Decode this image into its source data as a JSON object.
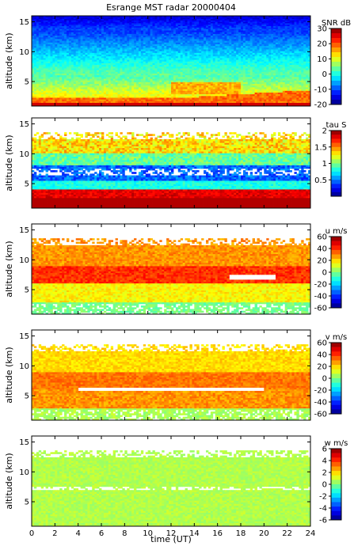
{
  "title": "Esrange MST radar 20000404",
  "xlabel": "time (UT)",
  "chart_data": [
    {
      "type": "heatmap",
      "title": "Esrange MST radar 20000404",
      "ylabel": "altitude (km)",
      "xlabel": "",
      "xlim": [
        0,
        24
      ],
      "ylim": [
        0.9,
        16
      ],
      "x_ticks": [
        "0",
        "2",
        "4",
        "6",
        "8",
        "10",
        "12",
        "14",
        "16",
        "18",
        "20",
        "22",
        "24"
      ],
      "y_ticks": [
        "5",
        "10",
        "15"
      ],
      "colorbar": {
        "label": "SNR dB",
        "range": [
          -20,
          30
        ],
        "ticks": [
          "30",
          "20",
          "10",
          "0",
          "-10",
          "-20"
        ]
      },
      "summary_profile": [
        {
          "alt": 1.5,
          "value": 28
        },
        {
          "alt": 3,
          "value": 18
        },
        {
          "alt": 5,
          "value": 10
        },
        {
          "alt": 7,
          "value": 4
        },
        {
          "alt": 9,
          "value": 2
        },
        {
          "alt": 11,
          "value": -2
        },
        {
          "alt": 13,
          "value": -8
        },
        {
          "alt": 15,
          "value": -14
        }
      ]
    },
    {
      "type": "heatmap",
      "ylabel": "altitude (km)",
      "xlim": [
        0,
        24
      ],
      "ylim": [
        0.9,
        16
      ],
      "x_ticks": [
        "0",
        "2",
        "4",
        "6",
        "8",
        "10",
        "12",
        "14",
        "16",
        "18",
        "20",
        "22",
        "24"
      ],
      "y_ticks": [
        "5",
        "10",
        "15"
      ],
      "colorbar": {
        "label": "tau S",
        "range": [
          0,
          2
        ],
        "ticks": [
          "2",
          "1.5",
          "1",
          "0.5"
        ]
      },
      "summary_profile": [
        {
          "alt": 2,
          "value": 1.95
        },
        {
          "alt": 3.5,
          "value": 1.8
        },
        {
          "alt": 5,
          "value": 0.6
        },
        {
          "alt": 7,
          "value": 0.4
        },
        {
          "alt": 9,
          "value": 0.9
        },
        {
          "alt": 11,
          "value": 1.4
        }
      ]
    },
    {
      "type": "heatmap",
      "ylabel": "altitude (km)",
      "xlim": [
        0,
        24
      ],
      "ylim": [
        0.9,
        16
      ],
      "x_ticks": [
        "0",
        "2",
        "4",
        "6",
        "8",
        "10",
        "12",
        "14",
        "16",
        "18",
        "20",
        "22",
        "24"
      ],
      "y_ticks": [
        "5",
        "10",
        "15"
      ],
      "colorbar": {
        "label": "u m/s",
        "range": [
          -60,
          60
        ],
        "ticks": [
          "60",
          "40",
          "20",
          "0",
          "-20",
          "-40",
          "-60"
        ]
      },
      "summary_profile": [
        {
          "alt": 2,
          "value": -5
        },
        {
          "alt": 4,
          "value": 5
        },
        {
          "alt": 6,
          "value": 20
        },
        {
          "alt": 8,
          "value": 40
        },
        {
          "alt": 10,
          "value": 35
        },
        {
          "alt": 12,
          "value": 22
        }
      ]
    },
    {
      "type": "heatmap",
      "ylabel": "altitude (km)",
      "xlim": [
        0,
        24
      ],
      "ylim": [
        0.9,
        16
      ],
      "x_ticks": [
        "0",
        "2",
        "4",
        "6",
        "8",
        "10",
        "12",
        "14",
        "16",
        "18",
        "20",
        "22",
        "24"
      ],
      "y_ticks": [
        "5",
        "10",
        "15"
      ],
      "colorbar": {
        "label": "v m/s",
        "range": [
          -60,
          60
        ],
        "ticks": [
          "60",
          "40",
          "20",
          "0",
          "-20",
          "-40",
          "-60"
        ]
      },
      "summary_profile": [
        {
          "alt": 2,
          "value": 0
        },
        {
          "alt": 4,
          "value": 18
        },
        {
          "alt": 6,
          "value": 30
        },
        {
          "alt": 8,
          "value": 28
        },
        {
          "alt": 10,
          "value": 22
        },
        {
          "alt": 12,
          "value": 15
        }
      ]
    },
    {
      "type": "heatmap",
      "ylabel": "altitude (km)",
      "xlabel": "time (UT)",
      "xlim": [
        0,
        24
      ],
      "ylim": [
        0.9,
        16
      ],
      "x_ticks": [
        "0",
        "2",
        "4",
        "6",
        "8",
        "10",
        "12",
        "14",
        "16",
        "18",
        "20",
        "22",
        "24"
      ],
      "y_ticks": [
        "5",
        "10",
        "15"
      ],
      "colorbar": {
        "label": "w m/s",
        "range": [
          -6,
          6
        ],
        "ticks": [
          "6",
          "4",
          "2",
          "0",
          "-2",
          "-4",
          "-6"
        ]
      },
      "summary_profile": [
        {
          "alt": 2,
          "value": 0.3
        },
        {
          "alt": 6,
          "value": 0.5
        },
        {
          "alt": 10,
          "value": 0.4
        }
      ]
    }
  ]
}
